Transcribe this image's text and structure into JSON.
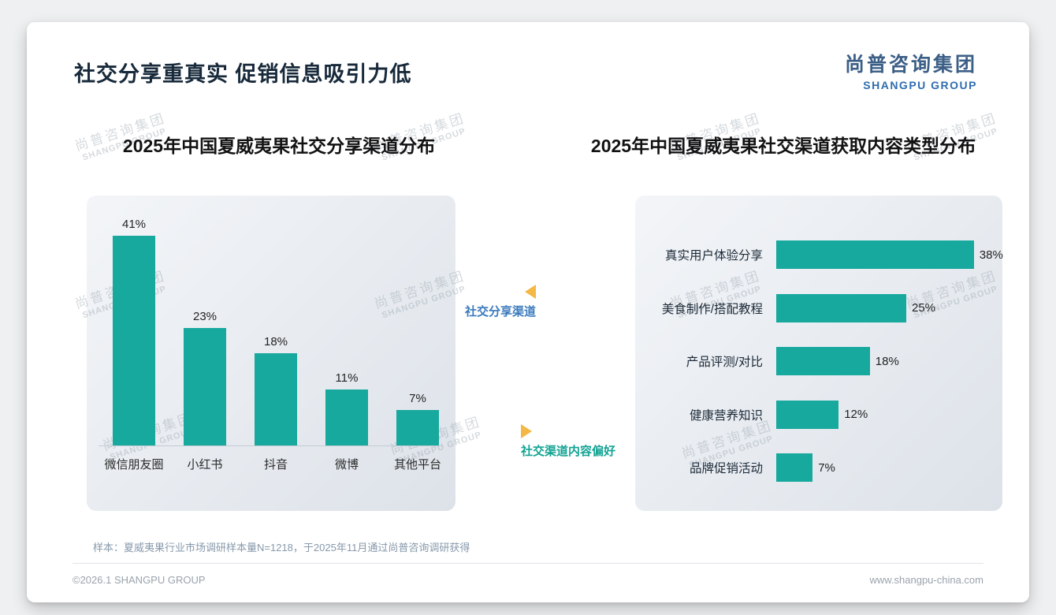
{
  "slide": {
    "title": "社交分享重真实 促销信息吸引力低",
    "logo": {
      "cn": "尚普咨询集团",
      "en": "SHANGPU GROUP"
    },
    "watermark": {
      "line1": "尚普咨询集团",
      "line2": "SHANGPU GROUP"
    },
    "annotations": {
      "left": "社交分享渠道",
      "right": "社交渠道内容偏好"
    },
    "sample_note": "样本：夏威夷果行业市场调研样本量N=1218，于2025年11月通过尚普咨询调研获得",
    "footer": {
      "left": "©2026.1 SHANGPU GROUP",
      "right": "www.shangpu-china.com"
    }
  },
  "colors": {
    "bar_teal": "#17a89e",
    "annotation_blue": "#3a7abd",
    "annotation_teal": "#12a393",
    "triangle_yellow": "#f3b845",
    "logo_blue": "#2f6db0"
  },
  "chart_data": [
    {
      "type": "bar",
      "orientation": "vertical",
      "title": "2025年中国夏威夷果社交分享渠道分布",
      "categories": [
        "微信朋友圈",
        "小红书",
        "抖音",
        "微博",
        "其他平台"
      ],
      "values": [
        41,
        23,
        18,
        11,
        7
      ],
      "unit": "%",
      "bar_color": "#17a89e",
      "ylim": [
        0,
        45
      ],
      "grid": false,
      "legend": false
    },
    {
      "type": "bar",
      "orientation": "horizontal",
      "title": "2025年中国夏威夷果社交渠道获取内容类型分布",
      "categories": [
        "真实用户体验分享",
        "美食制作/搭配教程",
        "产品评测/对比",
        "健康营养知识",
        "品牌促销活动"
      ],
      "values": [
        38,
        25,
        18,
        12,
        7
      ],
      "unit": "%",
      "bar_color": "#17a89e",
      "xlim": [
        0,
        42
      ],
      "grid": false,
      "legend": false
    }
  ]
}
